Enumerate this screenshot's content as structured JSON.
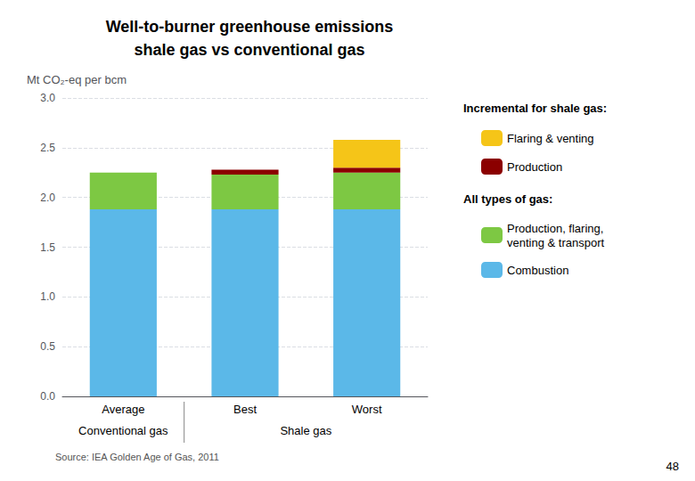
{
  "chart_data": {
    "type": "bar",
    "title": "Well-to-burner greenhouse emissions\nshale gas vs conventional gas",
    "ylabel": "Mt CO₂-eq per bcm",
    "categories": [
      "Average",
      "Best",
      "Worst"
    ],
    "series": [
      {
        "name": "Combustion",
        "color": "#5BB8E8",
        "values": [
          1.88,
          1.88,
          1.88
        ]
      },
      {
        "name": "Production, flaring,\nventing & transport",
        "color": "#7DC843",
        "values": [
          0.37,
          0.35,
          0.37
        ]
      },
      {
        "name": "Production",
        "color": "#8B0000",
        "values": [
          0.0,
          0.05,
          0.05
        ]
      },
      {
        "name": "Flaring & venting",
        "color": "#F5C518",
        "values": [
          0.0,
          0.0,
          0.28
        ]
      }
    ],
    "stacked": true,
    "ylim": [
      0,
      3.0
    ],
    "yticks": [
      {
        "value": 0,
        "label": "0.0"
      },
      0.5,
      {
        "value": 1.0,
        "label": "1.0"
      },
      1.5,
      {
        "value": 2.0,
        "label": "2.0"
      },
      2.5,
      {
        "value": 3.0,
        "label": "3.0"
      }
    ],
    "grid": true,
    "legend": "right",
    "groups": [
      {
        "label": "Conventional gas",
        "categories": [
          "Average"
        ]
      },
      {
        "label": "Shale gas",
        "categories": [
          "Best",
          "Worst"
        ]
      }
    ],
    "legend_groups": [
      {
        "title": "Incremental for shale gas:",
        "series": [
          "Flaring & venting",
          "Production"
        ]
      },
      {
        "title": "All types of gas:",
        "series": [
          "Production, flaring,\nventing & transport",
          "Combustion"
        ]
      }
    ],
    "source": "Source: IEA Golden Age of Gas, 2011",
    "page_number": "48"
  }
}
